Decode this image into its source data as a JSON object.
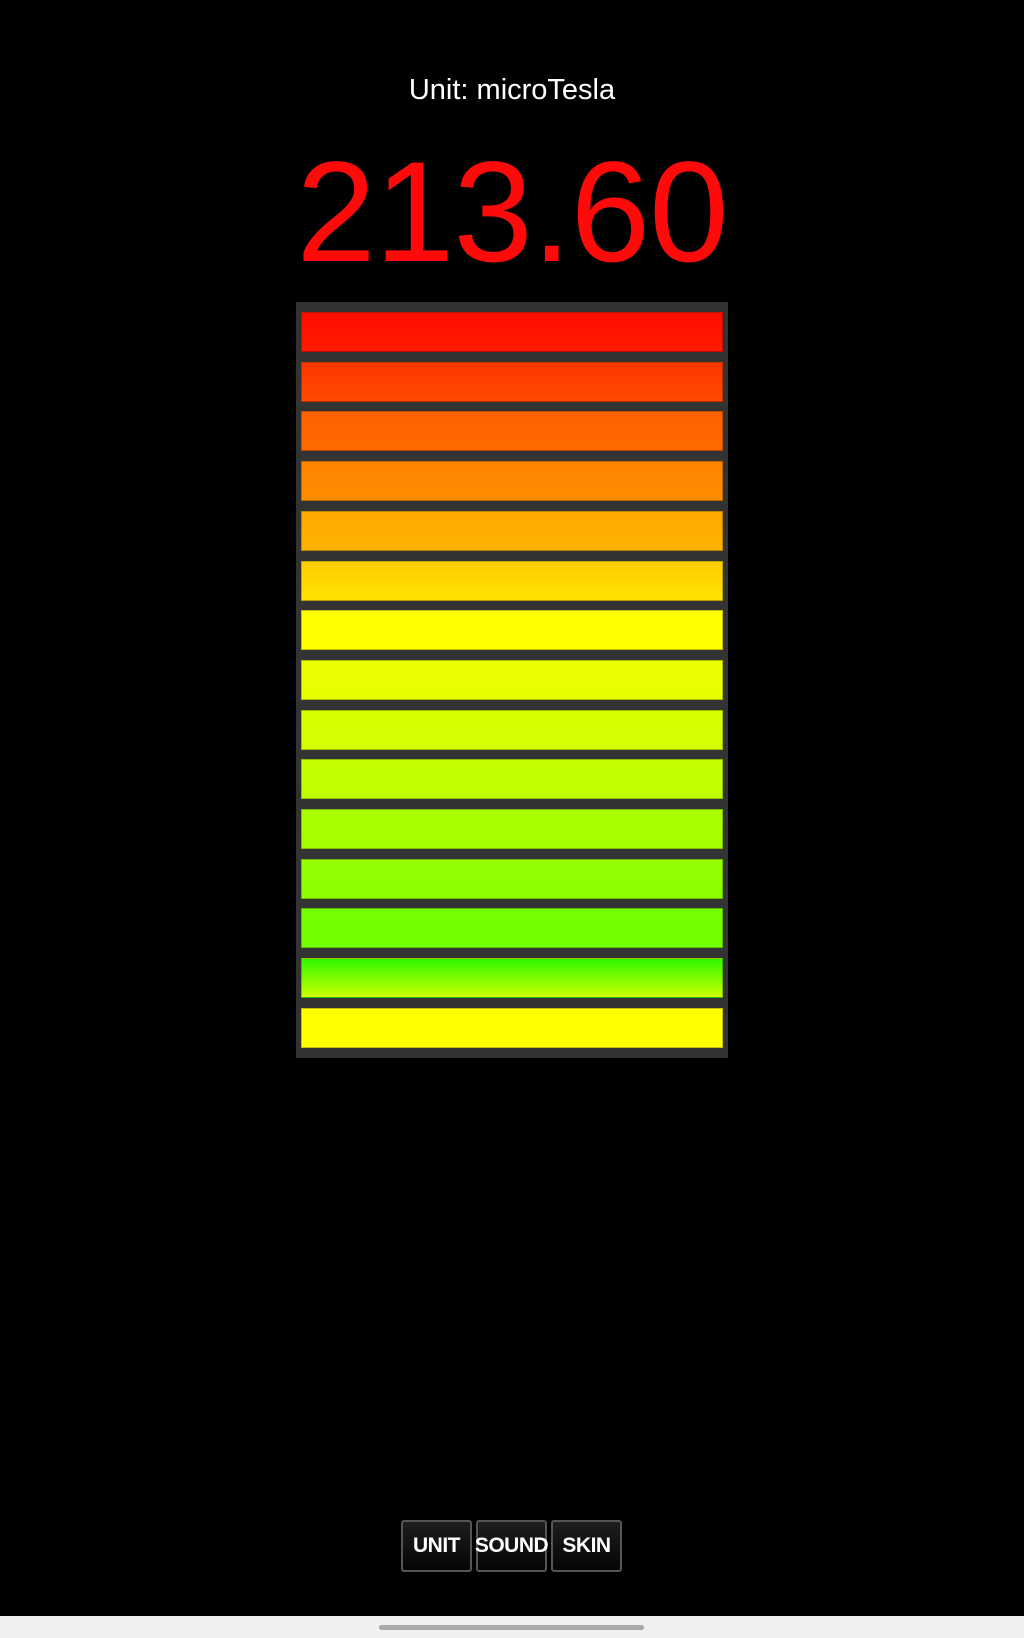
{
  "header": {
    "unit_label": "Unit: microTesla"
  },
  "reading": {
    "value": "213.60",
    "color": "#ff0a0a"
  },
  "meter": {
    "lit_bars": 15,
    "total_bars": 15,
    "bars": [
      {
        "top": "#ff0c00",
        "bottom": "#ff1a00"
      },
      {
        "top": "#ff3600",
        "bottom": "#ff4a00"
      },
      {
        "top": "#ff6200",
        "bottom": "#ff6a00"
      },
      {
        "top": "#ff8400",
        "bottom": "#ff8c00"
      },
      {
        "top": "#ffa800",
        "bottom": "#ffb400"
      },
      {
        "top": "#ffcc00",
        "bottom": "#ffe400"
      },
      {
        "top": "#ffff00",
        "bottom": "#ffff00"
      },
      {
        "top": "#ecff00",
        "bottom": "#e6ff00"
      },
      {
        "top": "#d8ff00",
        "bottom": "#d2ff00"
      },
      {
        "top": "#c4ff00",
        "bottom": "#beff00"
      },
      {
        "top": "#aaff00",
        "bottom": "#a4ff00"
      },
      {
        "top": "#94ff00",
        "bottom": "#8cff00"
      },
      {
        "top": "#76ff00",
        "bottom": "#72ff00"
      },
      {
        "top": "#30f800",
        "bottom": "#ccff00"
      },
      {
        "top": "#ffff00",
        "bottom": "#ffff00"
      }
    ]
  },
  "buttons": [
    {
      "label": "UNIT"
    },
    {
      "label": "SOUND"
    },
    {
      "label": "SKIN"
    }
  ]
}
